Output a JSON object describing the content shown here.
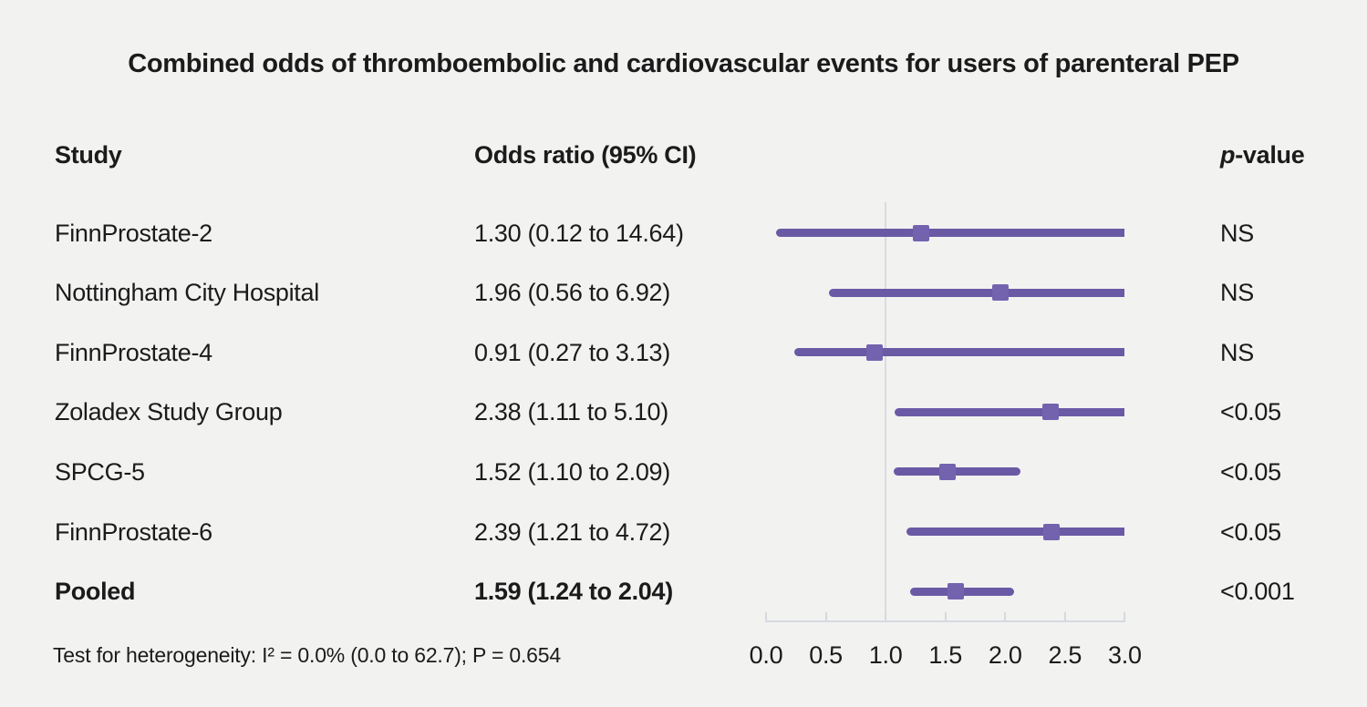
{
  "title": "Combined odds of thromboembolic and cardiovascular events for users of parenteral PEP",
  "columns": {
    "study": "Study",
    "odds_ratio": "Odds ratio (95% CI)",
    "p_italic": "p",
    "p_rest": "-value"
  },
  "footer": "Test for heterogeneity: I² = 0.0% (0.0 to 62.7); P = 0.654",
  "colors": {
    "background": "#f2f2f1",
    "text": "#1b1b1b",
    "ci_line": "#6a5aa5",
    "marker": "#7363ae",
    "axis": "#d5d9df",
    "ref_line": "#d8dce2"
  },
  "chart_data": {
    "type": "forest",
    "xlim": [
      0,
      3
    ],
    "x_ticks": [
      "0.0",
      "0.5",
      "1.0",
      "1.5",
      "2.0",
      "2.5",
      "3.0"
    ],
    "ref_line": 1.0,
    "grid": false,
    "studies": [
      {
        "label": "FinnProstate-2",
        "or": 1.3,
        "lo": 0.12,
        "hi": 14.64,
        "or_text": "1.30 (0.12 to 14.64)",
        "p": "NS",
        "bold": false
      },
      {
        "label": "Nottingham City Hospital",
        "or": 1.96,
        "lo": 0.56,
        "hi": 6.92,
        "or_text": "1.96 (0.56 to 6.92)",
        "p": "NS",
        "bold": false
      },
      {
        "label": "FinnProstate-4",
        "or": 0.91,
        "lo": 0.27,
        "hi": 3.13,
        "or_text": "0.91 (0.27 to 3.13)",
        "p": "NS",
        "bold": false
      },
      {
        "label": "Zoladex Study Group",
        "or": 2.38,
        "lo": 1.11,
        "hi": 5.1,
        "or_text": "2.38 (1.11 to 5.10)",
        "p": "<0.05",
        "bold": false
      },
      {
        "label": "SPCG-5",
        "or": 1.52,
        "lo": 1.1,
        "hi": 2.09,
        "or_text": "1.52 (1.10 to 2.09)",
        "p": "<0.05",
        "bold": false
      },
      {
        "label": "FinnProstate-6",
        "or": 2.39,
        "lo": 1.21,
        "hi": 4.72,
        "or_text": "2.39 (1.21 to 4.72)",
        "p": "<0.05",
        "bold": false
      },
      {
        "label": "Pooled",
        "or": 1.59,
        "lo": 1.24,
        "hi": 2.04,
        "or_text": "1.59 (1.24 to 2.04)",
        "p": "<0.001",
        "bold": true
      }
    ]
  }
}
